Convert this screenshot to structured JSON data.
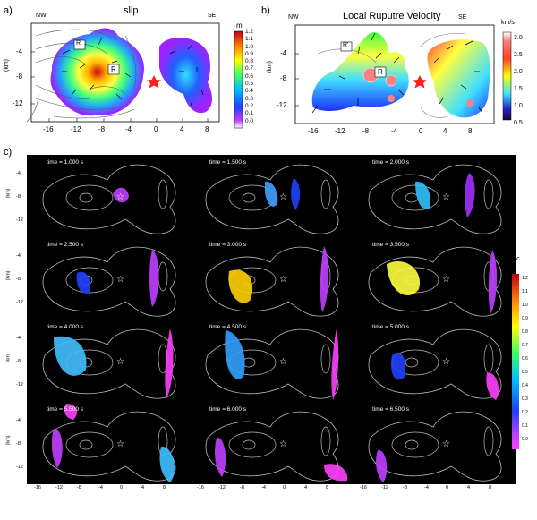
{
  "panel_a": {
    "label": "a)",
    "title": "slip",
    "nw": "NW",
    "se": "SE",
    "ylabel": "(km)",
    "yticks": [
      "-4",
      "-8",
      "-12"
    ],
    "xticks": [
      "-16",
      "-12",
      "-8",
      "-4",
      "0",
      "4",
      "8"
    ],
    "box_r1": "R'",
    "box_r": "R",
    "colorbar_unit": "m",
    "colorbar_ticks": [
      "1.2",
      "1.1",
      "1.0",
      "0.9",
      "0.8",
      "0.7",
      "0.6",
      "0.5",
      "0.4",
      "0.3",
      "0.2",
      "0.1",
      "0.0"
    ]
  },
  "panel_b": {
    "label": "b)",
    "title": "Local Ruputre Velocity",
    "nw": "NW",
    "se": "SE",
    "ylabel": "(km)",
    "yticks": [
      "-4",
      "-8",
      "-12"
    ],
    "xticks": [
      "-16",
      "-12",
      "-8",
      "-4",
      "0",
      "4",
      "8"
    ],
    "box_r1": "R'",
    "box_r": "R",
    "colorbar_unit": "km/s",
    "colorbar_ticks": [
      "3.0",
      "2.5",
      "2.0",
      "1.5",
      "1.0",
      "0.5"
    ]
  },
  "panel_c": {
    "label": "c)",
    "colorbar_unit": "m/sec",
    "colorbar_ticks": [
      "1.2",
      "1.1",
      "1.0",
      "0.9",
      "0.8",
      "0.7",
      "0.6",
      "0.5",
      "0.4",
      "0.3",
      "0.2",
      "0.1",
      "0.0"
    ],
    "snapshot_ylabel": "(km)",
    "snapshot_yticks": [
      "-4",
      "-8",
      "-12"
    ],
    "snapshot_xticks": [
      "-16",
      "-12",
      "-8",
      "-4",
      "0",
      "4",
      "8"
    ],
    "snapshots": [
      {
        "time": "time = 1.000 s"
      },
      {
        "time": "time = 1.500 s"
      },
      {
        "time": "time = 2.000 s"
      },
      {
        "time": "time = 2.500 s"
      },
      {
        "time": "time = 3.000 s"
      },
      {
        "time": "time = 3.500 s"
      },
      {
        "time": "time = 4.000 s"
      },
      {
        "time": "time = 4.500 s"
      },
      {
        "time": "time = 5.000 s"
      },
      {
        "time": "time = 5.500 s"
      },
      {
        "time": "time = 6.000 s"
      },
      {
        "time": "time = 6.500 s"
      }
    ]
  },
  "colors": {
    "jet_top": "#c0001a",
    "jet_mid": "#ffff00",
    "jet_low": "#00c0ff",
    "jet_bottom": "#cc33ff",
    "epicenter": "#ff2020"
  }
}
